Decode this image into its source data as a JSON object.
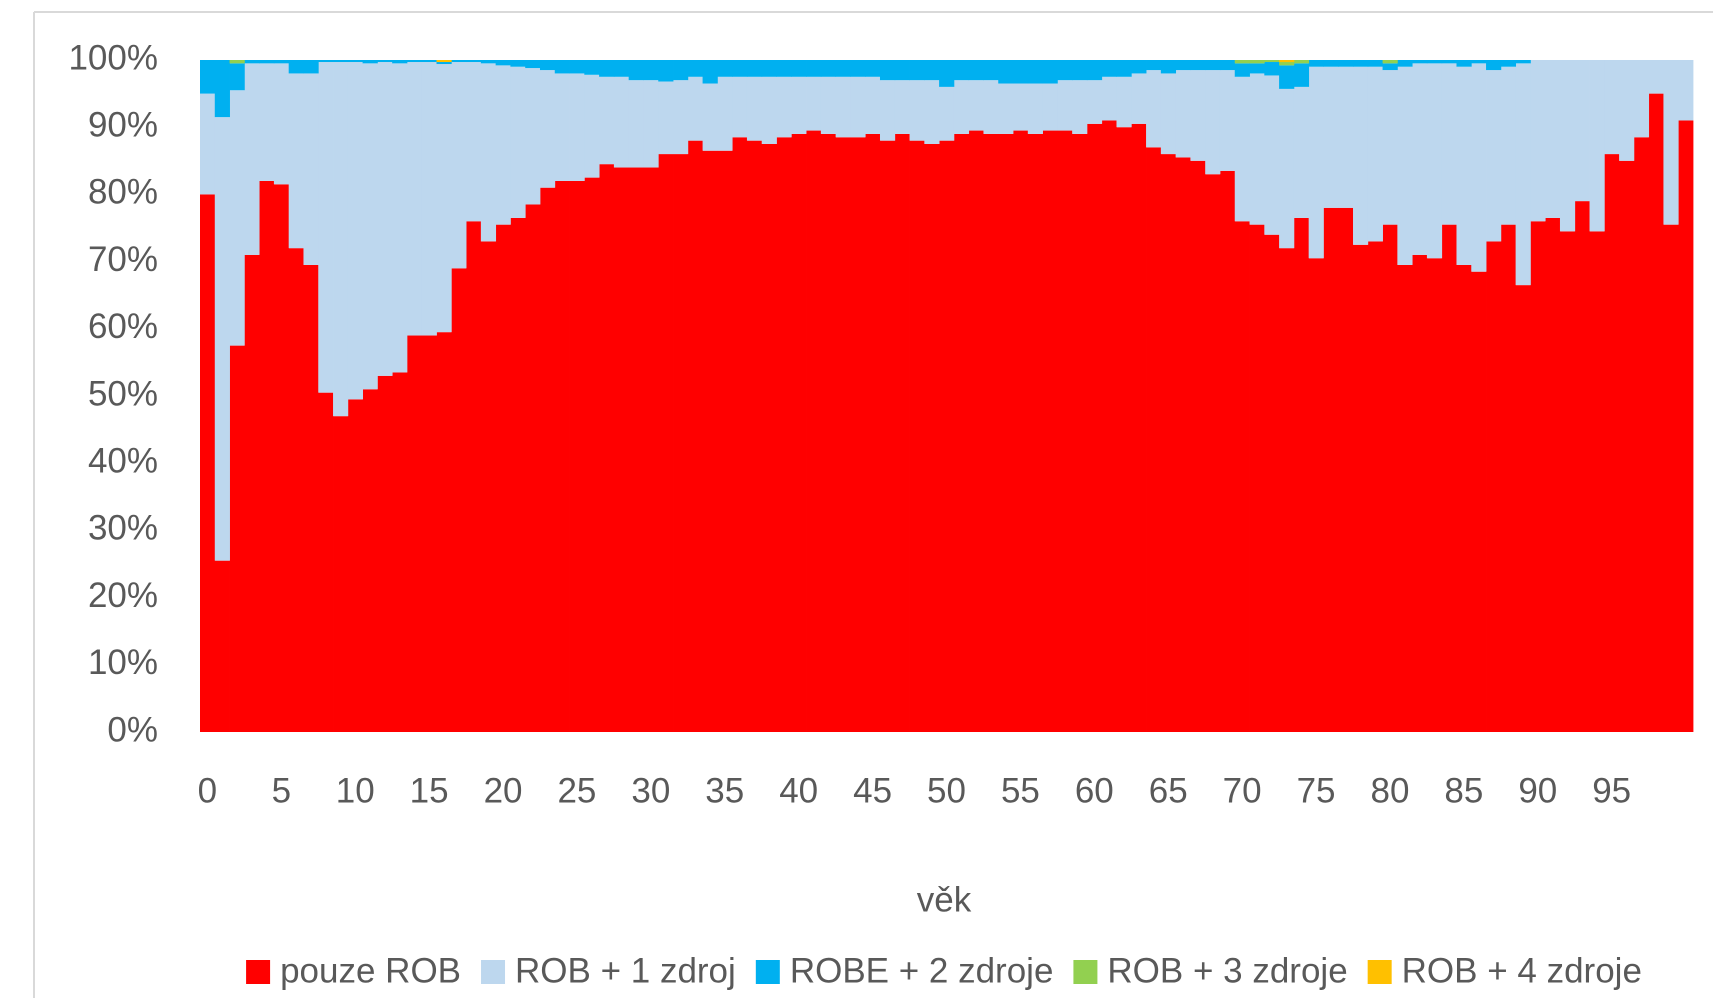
{
  "chart_data": {
    "type": "stacked_bar",
    "x_label": "věk",
    "categories": [
      0,
      null,
      null,
      null,
      null,
      5,
      null,
      null,
      null,
      null,
      10,
      null,
      null,
      null,
      null,
      15,
      null,
      null,
      null,
      null,
      20,
      null,
      null,
      null,
      null,
      25,
      null,
      null,
      null,
      null,
      30,
      null,
      null,
      null,
      null,
      35,
      null,
      null,
      null,
      null,
      40,
      null,
      null,
      null,
      null,
      45,
      null,
      null,
      null,
      null,
      50,
      null,
      null,
      null,
      null,
      55,
      null,
      null,
      null,
      null,
      60,
      null,
      null,
      null,
      null,
      65,
      null,
      null,
      null,
      null,
      70,
      null,
      null,
      null,
      null,
      75,
      null,
      null,
      null,
      null,
      80,
      null,
      null,
      null,
      null,
      85,
      null,
      null,
      null,
      null,
      90,
      null,
      null,
      null,
      null,
      95,
      null,
      null,
      null,
      null,
      null
    ],
    "ylim": [
      0,
      100
    ],
    "yticks": [
      {
        "value": 0,
        "label": "0%"
      },
      {
        "value": 10,
        "label": "10%"
      },
      {
        "value": 20,
        "label": "20%"
      },
      {
        "value": 30,
        "label": "30%"
      },
      {
        "value": 40,
        "label": "40%"
      },
      {
        "value": 50,
        "label": "50%"
      },
      {
        "value": 60,
        "label": "60%"
      },
      {
        "value": 70,
        "label": "70%"
      },
      {
        "value": 80,
        "label": "80%"
      },
      {
        "value": 90,
        "label": "90%"
      },
      {
        "value": 100,
        "label": "100%"
      }
    ],
    "legend": "bottom",
    "series": [
      {
        "name": "pouze ROB",
        "color": "#ff0000",
        "values": [
          80,
          25.5,
          57.5,
          71,
          82,
          81.5,
          72,
          69.5,
          50.5,
          47,
          49.5,
          51,
          53,
          53.5,
          59,
          59,
          59.5,
          69,
          76,
          73,
          75.5,
          76.5,
          78.5,
          81,
          82,
          82,
          82.5,
          84.5,
          84,
          84,
          84,
          86,
          86,
          88,
          86.5,
          86.5,
          88.5,
          88,
          87.5,
          88.5,
          89,
          89.5,
          89,
          88.5,
          88.5,
          89,
          88,
          89,
          88,
          87.5,
          88,
          89,
          89.5,
          89,
          89,
          89.5,
          89,
          89.5,
          89.5,
          89,
          90.5,
          91,
          90,
          90.5,
          87,
          86,
          85.5,
          85,
          83,
          83.5,
          76,
          75.5,
          74,
          72,
          76.5,
          70.5,
          78,
          78,
          72.5,
          73,
          75.5,
          69.5,
          71,
          70.5,
          75.5,
          69.5,
          68.5,
          73,
          75.5,
          66.5,
          76,
          76.5,
          74.5,
          79,
          74.5,
          86,
          85,
          88.5,
          95,
          75.5,
          91
        ]
      },
      {
        "name": "ROB + 1 zdroj",
        "color": "#bdd7ee",
        "values": [
          15,
          66,
          38,
          28.5,
          17.5,
          18,
          26,
          28.5,
          49.2,
          52.7,
          50.2,
          48.5,
          46.7,
          46,
          40.7,
          40.7,
          39.9,
          30.7,
          23.7,
          26.5,
          23.7,
          22.5,
          20.3,
          17.5,
          16,
          16,
          15.3,
          13,
          13.5,
          13,
          13,
          10.8,
          11,
          9.5,
          10,
          11,
          9,
          9.5,
          10,
          9,
          8.5,
          8,
          8.5,
          9,
          9,
          8.5,
          9,
          8,
          9,
          9.5,
          8,
          8,
          7.5,
          8,
          7.5,
          7,
          7.5,
          7,
          7.5,
          8,
          6.5,
          6.5,
          7.5,
          7.5,
          11.5,
          12,
          13,
          13.5,
          15.5,
          15,
          21.5,
          22.5,
          23.7,
          23.7,
          19.5,
          28.5,
          21,
          21,
          26.5,
          26,
          23,
          29.5,
          28.5,
          29,
          24,
          29.5,
          31,
          25.5,
          23.5,
          33,
          24,
          23.5,
          25.5,
          21,
          25.5,
          14,
          15,
          11.5,
          5,
          24.5,
          9
        ]
      },
      {
        "name": "ROBE + 2 zdroje",
        "color": "#00b0f0",
        "values": [
          5,
          8.5,
          4,
          0.5,
          0.5,
          0.5,
          2,
          2,
          0.3,
          0.3,
          0.3,
          0.5,
          0.3,
          0.5,
          0.3,
          0.3,
          0.3,
          0.3,
          0.3,
          0.5,
          0.8,
          1,
          1.2,
          1.5,
          2,
          2,
          2.2,
          2.5,
          2.5,
          3,
          3,
          3.2,
          3,
          2.5,
          3.5,
          2.5,
          2.5,
          2.5,
          2.5,
          2.5,
          2.5,
          2.5,
          2.5,
          2.5,
          2.5,
          2.5,
          3,
          3,
          3,
          3,
          4,
          3,
          3,
          3,
          3.5,
          3.5,
          3.5,
          3.5,
          3,
          3,
          3,
          2.5,
          2.5,
          2,
          1.5,
          2,
          1.5,
          1.5,
          1.5,
          1.5,
          2,
          1.5,
          2,
          3.5,
          3.5,
          1,
          1,
          1,
          1,
          1,
          1,
          1,
          0.5,
          0.5,
          0.5,
          1,
          0.5,
          1.5,
          1,
          0.5,
          0,
          0,
          0,
          0,
          0,
          0,
          0,
          0,
          0,
          0,
          0
        ]
      },
      {
        "name": "ROB + 3 zdroje",
        "color": "#92d050",
        "values": [
          0,
          0,
          0.5,
          0,
          0,
          0,
          0,
          0,
          0,
          0,
          0,
          0,
          0,
          0,
          0,
          0,
          0,
          0,
          0,
          0,
          0,
          0,
          0,
          0,
          0,
          0,
          0,
          0,
          0,
          0,
          0,
          0,
          0,
          0,
          0,
          0,
          0,
          0,
          0,
          0,
          0,
          0,
          0,
          0,
          0,
          0,
          0,
          0,
          0,
          0,
          0,
          0,
          0,
          0,
          0,
          0,
          0,
          0,
          0,
          0,
          0,
          0,
          0,
          0,
          0,
          0,
          0,
          0,
          0,
          0,
          0.5,
          0.5,
          0.3,
          0.5,
          0.5,
          0,
          0,
          0,
          0,
          0,
          0.5,
          0,
          0,
          0,
          0,
          0,
          0,
          0,
          0,
          0,
          0,
          0,
          0,
          0,
          0,
          0,
          0,
          0,
          0,
          0,
          0
        ]
      },
      {
        "name": "ROB + 4 zdroje",
        "color": "#ffc000",
        "values": [
          0,
          0,
          0,
          0,
          0,
          0,
          0,
          0,
          0,
          0,
          0,
          0,
          0,
          0,
          0,
          0,
          0.3,
          0,
          0,
          0,
          0,
          0,
          0,
          0,
          0,
          0,
          0,
          0,
          0,
          0,
          0,
          0,
          0,
          0,
          0,
          0,
          0,
          0,
          0,
          0,
          0,
          0,
          0,
          0,
          0,
          0,
          0,
          0,
          0,
          0,
          0,
          0,
          0,
          0,
          0,
          0,
          0,
          0,
          0,
          0,
          0,
          0,
          0,
          0,
          0,
          0,
          0,
          0,
          0,
          0,
          0,
          0,
          0,
          0.3,
          0,
          0,
          0,
          0,
          0,
          0,
          0,
          0,
          0,
          0,
          0,
          0,
          0,
          0,
          0,
          0,
          0,
          0,
          0,
          0,
          0,
          0,
          0,
          0,
          0,
          0,
          0
        ]
      }
    ]
  }
}
